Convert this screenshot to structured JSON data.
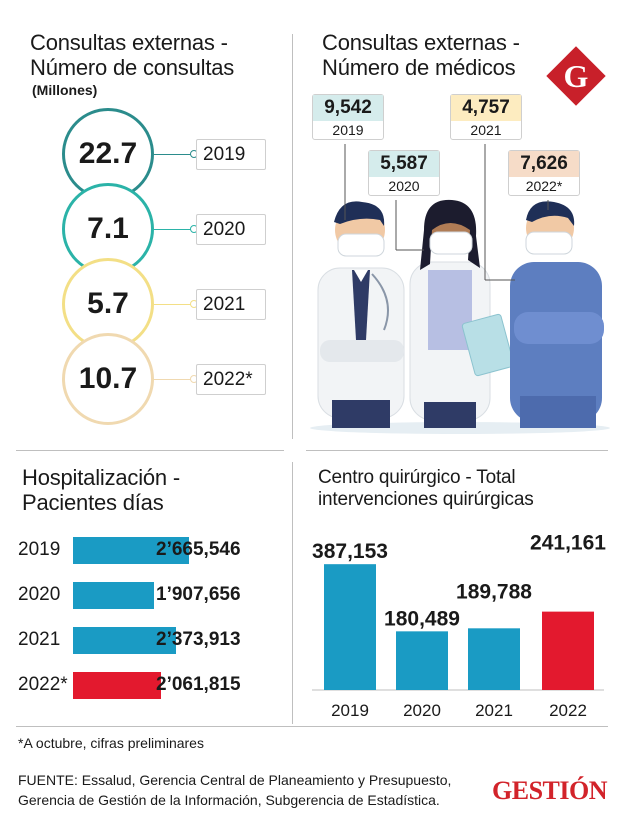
{
  "consultas": {
    "title_line1": "Consultas externas -",
    "title_line2": "Número de consultas",
    "unit": "(Millones)",
    "items": [
      {
        "value": "22.7",
        "year": "2019",
        "color": "#2b8c8c"
      },
      {
        "value": "7.1",
        "year": "2020",
        "color": "#2bb3a8"
      },
      {
        "value": "5.7",
        "year": "2021",
        "color": "#f3df86"
      },
      {
        "value": "10.7",
        "year": "2022*",
        "color": "#f0d9b0"
      }
    ]
  },
  "medicos": {
    "title_line1": "Consultas externas -",
    "title_line2": "Número de médicos",
    "items": [
      {
        "value": "9,542",
        "year": "2019",
        "color": "#d5ecec"
      },
      {
        "value": "5,587",
        "year": "2020",
        "color": "#d5ecec"
      },
      {
        "value": "4,757",
        "year": "2021",
        "color": "#fdecc0"
      },
      {
        "value": "7,626",
        "year": "2022*",
        "color": "#f6dcc8"
      }
    ]
  },
  "hospitalizacion": {
    "title_line1": "Hospitalización -",
    "title_line2": "Pacientes días"
  },
  "quirurgico": {
    "title_line1": "Centro quirúrgico - Total",
    "title_line2": "intervenciones quirúrgicas"
  },
  "chart_data": [
    {
      "type": "bar",
      "orientation": "horizontal",
      "categories": [
        "2019",
        "2020",
        "2021",
        "2022*"
      ],
      "values": [
        2665546,
        1907656,
        2373913,
        2061815
      ],
      "value_labels": [
        "2’665,546",
        "1’907,656",
        "2’373,913",
        "2’061,815"
      ],
      "colors": [
        "#1a9bc4",
        "#1a9bc4",
        "#1a9bc4",
        "#e3192e"
      ]
    },
    {
      "type": "bar",
      "categories": [
        "2019",
        "2020",
        "2021",
        "2022"
      ],
      "values": [
        387153,
        180489,
        189788,
        241161
      ],
      "value_labels": [
        "387,153",
        "180,489",
        "189,788",
        "241,161"
      ],
      "colors": [
        "#1a9bc4",
        "#1a9bc4",
        "#1a9bc4",
        "#e3192e"
      ],
      "ylim": [
        0,
        400000
      ]
    }
  ],
  "footnote": "*A octubre, cifras preliminares",
  "source_line1": "FUENTE: Essalud, Gerencia Central de Planeamiento y Presupuesto,",
  "source_line2": "Gerencia de Gestión de la Información, Subgerencia de Estadística.",
  "brand": "GESTIÓN",
  "logo_letter": "G",
  "accent_red": "#d2232a"
}
